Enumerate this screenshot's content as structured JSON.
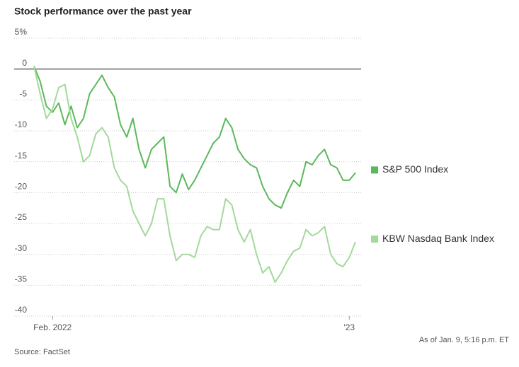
{
  "chart_data": {
    "type": "line",
    "title": "Stock performance over the past year",
    "note": "As of Jan. 9, 5:16 p.m. ET",
    "source": "Source: FactSet",
    "categories": [
      null,
      null,
      null,
      "Feb. 2022",
      null,
      null,
      null,
      null,
      null,
      null,
      null,
      null,
      null,
      null,
      null,
      null,
      null,
      null,
      null,
      null,
      null,
      null,
      null,
      null,
      null,
      null,
      null,
      null,
      null,
      null,
      null,
      null,
      null,
      null,
      null,
      null,
      null,
      null,
      null,
      null,
      null,
      null,
      null,
      null,
      null,
      null,
      null,
      null,
      null,
      null,
      null,
      "'23",
      null
    ],
    "series": [
      {
        "name": "S&P 500 Index",
        "color": "#5cb85c",
        "values": [
          0.5,
          -2,
          -6,
          -7,
          -5.5,
          -9,
          -6,
          -9.5,
          -8,
          -4,
          -2.5,
          -1,
          -3,
          -4.5,
          -9,
          -11,
          -8,
          -13,
          -16,
          -13,
          -12,
          -11,
          -19,
          -20,
          -17,
          -19.5,
          -18,
          -16,
          -14,
          -12,
          -11,
          -8,
          -9.5,
          -13,
          -14.5,
          -15.5,
          -16,
          -19,
          -21,
          -22,
          -22.5,
          -20,
          -18,
          -19,
          -15,
          -15.5,
          -14,
          -13,
          -15.5,
          -16,
          -18,
          -18,
          -16.8
        ]
      },
      {
        "name": "KBW Nasdaq Bank Index",
        "color": "#a3d99b",
        "values": [
          0.5,
          -4,
          -8,
          -6.5,
          -3,
          -2.5,
          -8,
          -11,
          -15,
          -14,
          -10.5,
          -9.5,
          -11,
          -16,
          -18,
          -19,
          -23,
          -25,
          -27,
          -25,
          -21,
          -21,
          -27,
          -31,
          -30,
          -30,
          -30.5,
          -27,
          -25.5,
          -26,
          -26,
          -21,
          -22,
          -26,
          -28,
          -26,
          -30,
          -33,
          -32,
          -34.5,
          -33,
          -31,
          -29.5,
          -29,
          -26,
          -27,
          -26.5,
          -25.5,
          -30,
          -31.5,
          -32,
          -30.5,
          -28
        ]
      }
    ],
    "ylim": [
      -40,
      5
    ],
    "yticks": [
      {
        "value": 5,
        "label": "5%"
      },
      0,
      -5,
      -10,
      -15,
      -20,
      -25,
      -30,
      -35,
      -40
    ],
    "grid": true
  }
}
